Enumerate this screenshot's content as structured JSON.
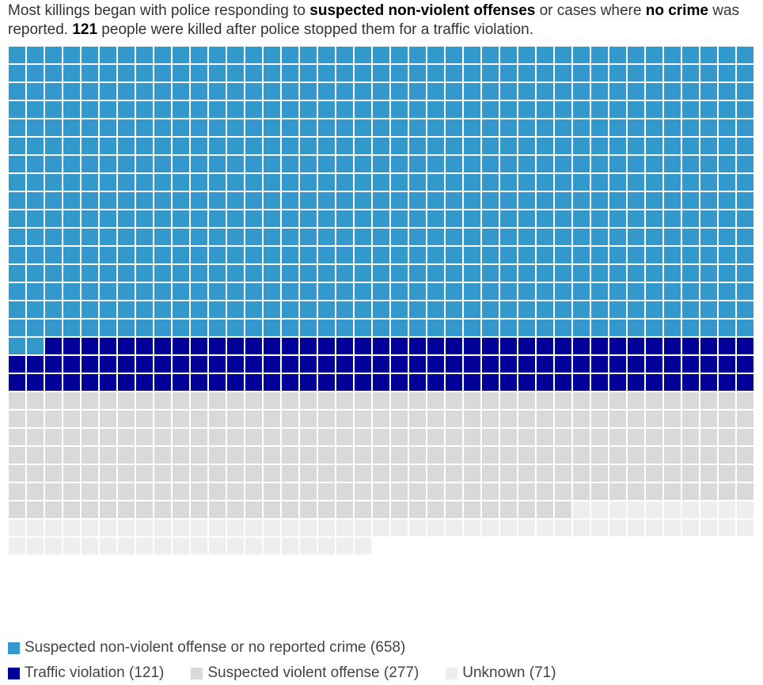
{
  "subtitle": {
    "parts": [
      {
        "text": "Most killings began with police responding to ",
        "bold": false
      },
      {
        "text": "suspected non-violent offenses",
        "bold": true
      },
      {
        "text": " or cases where ",
        "bold": false
      },
      {
        "text": "no crime",
        "bold": true
      },
      {
        "text": " was reported. ",
        "bold": false
      },
      {
        "text": "121",
        "bold": true
      },
      {
        "text": " people were killed after police stopped them for a traffic violation.",
        "bold": false
      }
    ]
  },
  "chart_data": {
    "type": "waffle",
    "units_per_row": 41,
    "fill_order": "row-major, left to right, top to bottom",
    "grid": true,
    "legend_position": "bottom-left",
    "series": [
      {
        "name": "Suspected non-violent offense or no reported crime",
        "value": 658,
        "color": "#3399cc"
      },
      {
        "name": "Traffic violation",
        "value": 121,
        "color": "#000099"
      },
      {
        "name": "Suspected violent offense",
        "value": 277,
        "color": "#d9d9d9"
      },
      {
        "name": "Unknown",
        "value": 71,
        "color": "#eeeeee"
      }
    ]
  }
}
